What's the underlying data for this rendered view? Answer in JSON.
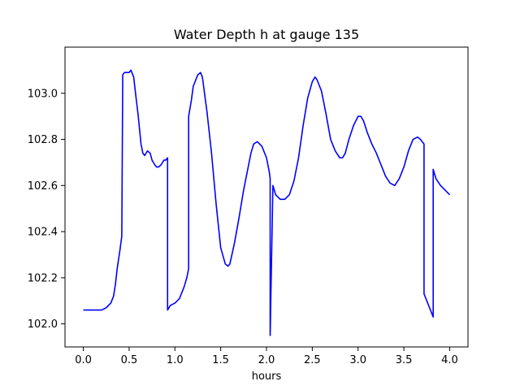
{
  "chart_data": {
    "type": "line",
    "title": "Water Depth h at gauge 135",
    "xlabel": "hours",
    "ylabel": "",
    "xlim": [
      -0.2,
      4.2
    ],
    "ylim": [
      101.9,
      103.2
    ],
    "xticks": [
      0.0,
      0.5,
      1.0,
      1.5,
      2.0,
      2.5,
      3.0,
      3.5,
      4.0
    ],
    "xtick_labels": [
      "0.0",
      "0.5",
      "1.0",
      "1.5",
      "2.0",
      "2.5",
      "3.0",
      "3.5",
      "4.0"
    ],
    "yticks": [
      102.0,
      102.2,
      102.4,
      102.6,
      102.8,
      103.0
    ],
    "ytick_labels": [
      "102.0",
      "102.2",
      "102.4",
      "102.6",
      "102.8",
      "103.0"
    ],
    "grid": false,
    "series": [
      {
        "color": "#0000ff",
        "x": [
          0.0,
          0.1,
          0.2,
          0.25,
          0.3,
          0.33,
          0.35,
          0.37,
          0.4,
          0.42,
          0.43,
          0.43,
          0.45,
          0.47,
          0.5,
          0.52,
          0.53,
          0.55,
          0.57,
          0.6,
          0.63,
          0.65,
          0.67,
          0.7,
          0.73,
          0.75,
          0.78,
          0.8,
          0.82,
          0.85,
          0.88,
          0.9,
          0.92,
          0.92,
          0.95,
          1.0,
          1.05,
          1.1,
          1.13,
          1.15,
          1.15,
          1.18,
          1.2,
          1.25,
          1.28,
          1.3,
          1.35,
          1.4,
          1.45,
          1.5,
          1.55,
          1.58,
          1.6,
          1.65,
          1.7,
          1.75,
          1.8,
          1.83,
          1.86,
          1.9,
          1.95,
          2.0,
          2.03,
          2.04,
          2.04,
          2.07,
          2.1,
          2.15,
          2.2,
          2.25,
          2.3,
          2.35,
          2.4,
          2.45,
          2.5,
          2.53,
          2.55,
          2.6,
          2.65,
          2.7,
          2.75,
          2.8,
          2.83,
          2.86,
          2.9,
          2.95,
          3.0,
          3.03,
          3.06,
          3.1,
          3.15,
          3.2,
          3.25,
          3.3,
          3.35,
          3.4,
          3.45,
          3.5,
          3.55,
          3.6,
          3.65,
          3.68,
          3.7,
          3.72,
          3.72,
          3.75,
          3.8,
          3.82,
          3.82,
          3.85,
          3.9,
          3.95,
          4.0
        ],
        "y": [
          102.06,
          102.06,
          102.06,
          102.07,
          102.09,
          102.12,
          102.17,
          102.24,
          102.32,
          102.38,
          103.04,
          103.08,
          103.09,
          103.09,
          103.09,
          103.1,
          103.09,
          103.07,
          103.0,
          102.9,
          102.78,
          102.74,
          102.73,
          102.75,
          102.74,
          102.71,
          102.69,
          102.68,
          102.68,
          102.69,
          102.71,
          102.71,
          102.72,
          102.06,
          102.08,
          102.09,
          102.11,
          102.16,
          102.2,
          102.24,
          102.9,
          102.97,
          103.03,
          103.08,
          103.09,
          103.07,
          102.92,
          102.74,
          102.52,
          102.33,
          102.26,
          102.25,
          102.26,
          102.35,
          102.46,
          102.58,
          102.68,
          102.74,
          102.78,
          102.79,
          102.77,
          102.72,
          102.66,
          102.63,
          101.95,
          102.6,
          102.56,
          102.54,
          102.54,
          102.56,
          102.62,
          102.72,
          102.86,
          102.98,
          103.05,
          103.07,
          103.06,
          103.01,
          102.91,
          102.8,
          102.75,
          102.72,
          102.72,
          102.74,
          102.8,
          102.86,
          102.9,
          102.9,
          102.88,
          102.83,
          102.78,
          102.74,
          102.69,
          102.64,
          102.61,
          102.6,
          102.63,
          102.68,
          102.75,
          102.8,
          102.81,
          102.8,
          102.79,
          102.78,
          102.13,
          102.1,
          102.05,
          102.03,
          102.67,
          102.63,
          102.6,
          102.58,
          102.56
        ]
      }
    ]
  }
}
